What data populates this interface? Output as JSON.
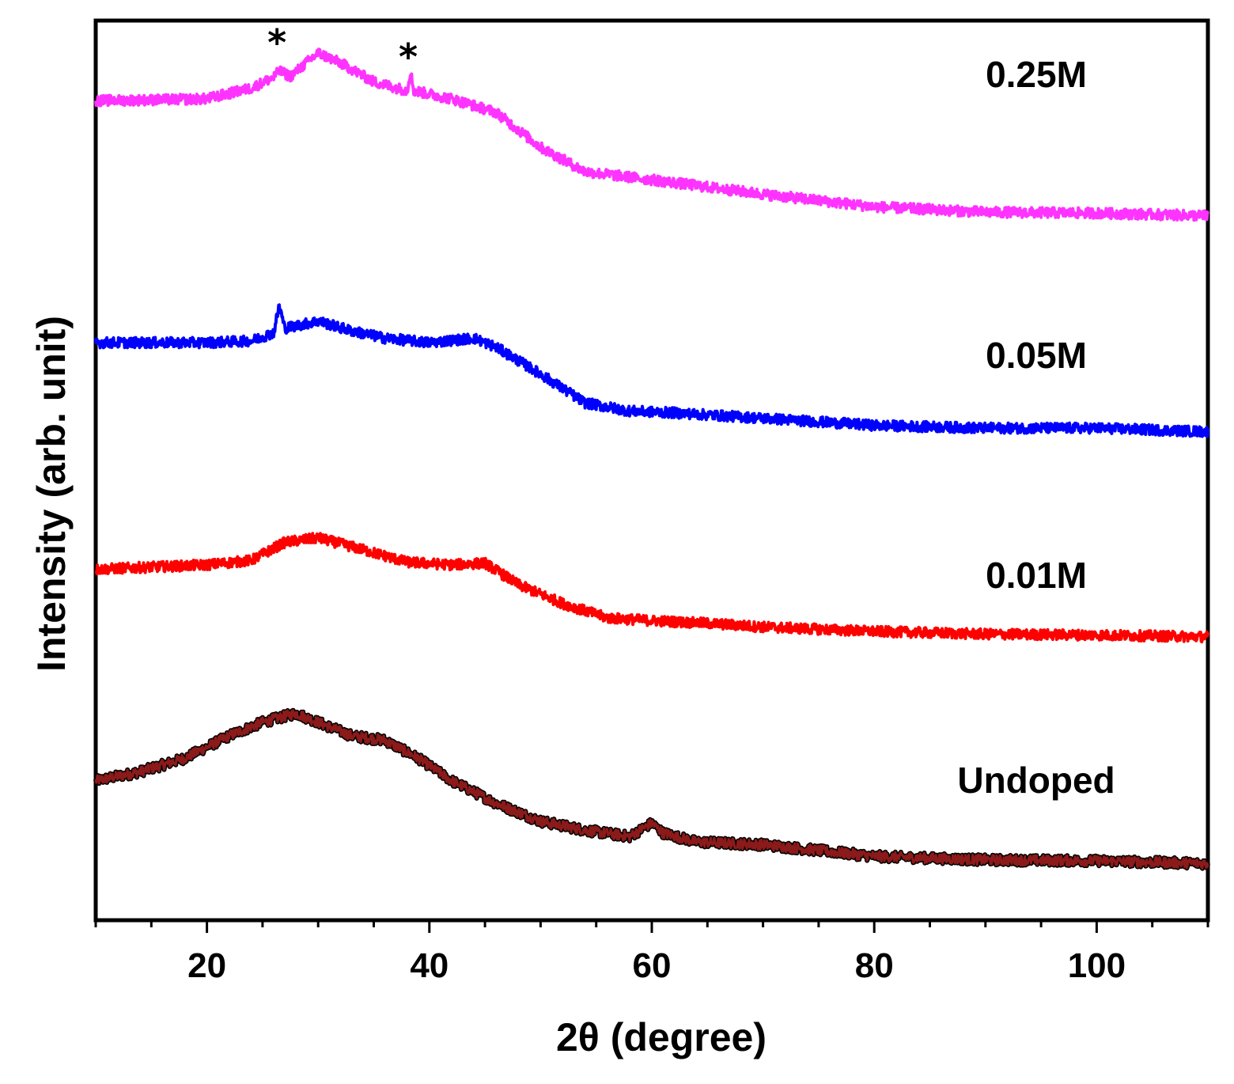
{
  "chart_data": {
    "type": "line",
    "title": "",
    "xlabel": "2θ (degree)",
    "ylabel": "Intensity (arb. unit)",
    "xlim": [
      10,
      110
    ],
    "ylim": [
      0,
      100
    ],
    "xticks": [
      20,
      40,
      60,
      80,
      100
    ],
    "grid": false,
    "legend": "inline labels at right",
    "series": [
      {
        "name": "Undoped",
        "color": "#8b1a1a",
        "outline_color": "#000000",
        "points": [
          [
            10,
            15.5
          ],
          [
            14,
            16.5
          ],
          [
            18,
            18
          ],
          [
            22,
            20.5
          ],
          [
            25,
            22
          ],
          [
            28,
            23
          ],
          [
            30,
            22
          ],
          [
            33,
            20.5
          ],
          [
            36,
            20
          ],
          [
            39,
            18
          ],
          [
            42,
            15.5
          ],
          [
            46,
            13
          ],
          [
            50,
            11
          ],
          [
            54,
            10
          ],
          [
            58,
            9.3
          ],
          [
            60,
            10.8
          ],
          [
            61,
            9.7
          ],
          [
            64,
            8.7
          ],
          [
            70,
            8.4
          ],
          [
            80,
            7.1
          ],
          [
            90,
            6.7
          ],
          [
            100,
            6.6
          ],
          [
            110,
            6.3
          ]
        ]
      },
      {
        "name": "0.01M",
        "color": "#ff0000",
        "points": [
          [
            10,
            39
          ],
          [
            16,
            39.3
          ],
          [
            20,
            39.5
          ],
          [
            24,
            40
          ],
          [
            27,
            42
          ],
          [
            30,
            42.5
          ],
          [
            34,
            41.2
          ],
          [
            38,
            39.8
          ],
          [
            42,
            39.5
          ],
          [
            45,
            39.7
          ],
          [
            48,
            37.3
          ],
          [
            52,
            35.2
          ],
          [
            56,
            33.6
          ],
          [
            60,
            33.3
          ],
          [
            65,
            33
          ],
          [
            70,
            32.6
          ],
          [
            80,
            32.1
          ],
          [
            90,
            31.8
          ],
          [
            100,
            31.7
          ],
          [
            110,
            31.5
          ]
        ]
      },
      {
        "name": "0.05M",
        "color": "#0000ff",
        "points": [
          [
            10,
            64.2
          ],
          [
            16,
            64.2
          ],
          [
            20,
            64.2
          ],
          [
            24,
            64.4
          ],
          [
            26,
            65.3
          ],
          [
            26.5,
            68.3
          ],
          [
            27,
            65.8
          ],
          [
            30,
            66.6
          ],
          [
            33,
            65.5
          ],
          [
            36,
            64.7
          ],
          [
            40,
            64.2
          ],
          [
            44,
            64.7
          ],
          [
            46,
            63.7
          ],
          [
            50,
            60.7
          ],
          [
            54,
            57.5
          ],
          [
            58,
            56.6
          ],
          [
            62,
            56.4
          ],
          [
            70,
            55.8
          ],
          [
            80,
            55
          ],
          [
            90,
            54.7
          ],
          [
            100,
            54.7
          ],
          [
            110,
            54.3
          ]
        ]
      },
      {
        "name": "0.25M",
        "color": "#ff33ff",
        "points": [
          [
            10,
            91.1
          ],
          [
            16,
            91.2
          ],
          [
            20,
            91.3
          ],
          [
            24,
            92.5
          ],
          [
            26,
            93.7
          ],
          [
            26.5,
            94.4
          ],
          [
            27.5,
            93.8
          ],
          [
            30,
            96.4
          ],
          [
            32,
            95.3
          ],
          [
            35,
            93.2
          ],
          [
            38,
            92.2
          ],
          [
            38.3,
            94.3
          ],
          [
            38.6,
            92.2
          ],
          [
            42,
            91.3
          ],
          [
            46,
            89.8
          ],
          [
            50,
            85.9
          ],
          [
            54,
            83.2
          ],
          [
            60,
            82.3
          ],
          [
            70,
            80.7
          ],
          [
            80,
            79.3
          ],
          [
            90,
            78.7
          ],
          [
            100,
            78.6
          ],
          [
            110,
            78.3
          ]
        ]
      }
    ],
    "annotations": [
      {
        "text": "*",
        "x": 26.3
      },
      {
        "text": "*",
        "x": 38.1
      }
    ]
  }
}
